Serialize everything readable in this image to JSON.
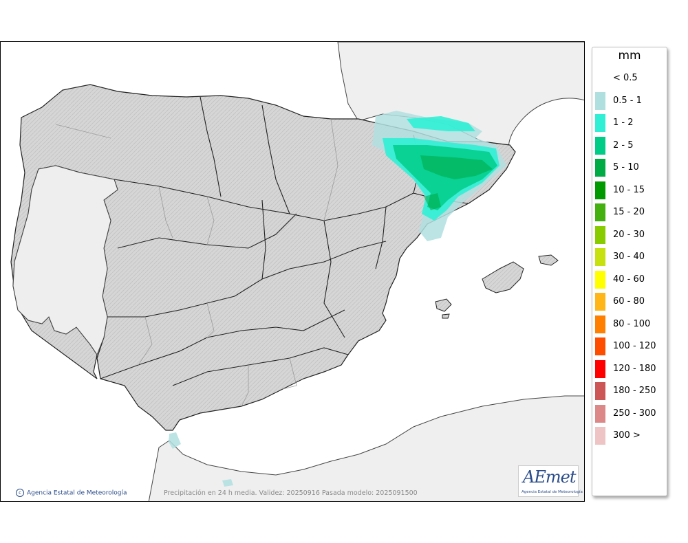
{
  "legend": {
    "unit": "mm",
    "items": [
      {
        "label": "< 0.5",
        "color": "#ffffff"
      },
      {
        "label": "0.5 - 1",
        "color": "#b0dfe0"
      },
      {
        "label": "1 - 2",
        "color": "#30efd5"
      },
      {
        "label": "2 - 5",
        "color": "#00cc88"
      },
      {
        "label": "5 - 10",
        "color": "#00aa44"
      },
      {
        "label": "10 - 15",
        "color": "#009900"
      },
      {
        "label": "15 - 20",
        "color": "#44b010"
      },
      {
        "label": "20 - 30",
        "color": "#88cc00"
      },
      {
        "label": "30 - 40",
        "color": "#c6e010"
      },
      {
        "label": "40 - 60",
        "color": "#ffff00"
      },
      {
        "label": "60 - 80",
        "color": "#ffb619"
      },
      {
        "label": "80 - 100",
        "color": "#ff7f00"
      },
      {
        "label": "100 - 120",
        "color": "#ff4d00"
      },
      {
        "label": "120 - 180",
        "color": "#ff0000"
      },
      {
        "label": "180 - 250",
        "color": "#cc5555"
      },
      {
        "label": "250 - 300",
        "color": "#dd8888"
      },
      {
        "label": "300 >",
        "color": "#eec4c4"
      }
    ]
  },
  "footer": {
    "credit": "Agencia Estatal de Meteorología",
    "validity": "Precipitación en 24 h media. Validez: 20250916 Pasada modelo: 2025091500"
  },
  "logo": {
    "text": "AEmet",
    "subtitle": "Agencia Estatal de Meteorología"
  },
  "colors": {
    "land": "#d9d9d9",
    "neighbor_land": "#efefef",
    "sea": "#ffffff",
    "border": "#222222",
    "region_border": "#9a9a9a"
  }
}
